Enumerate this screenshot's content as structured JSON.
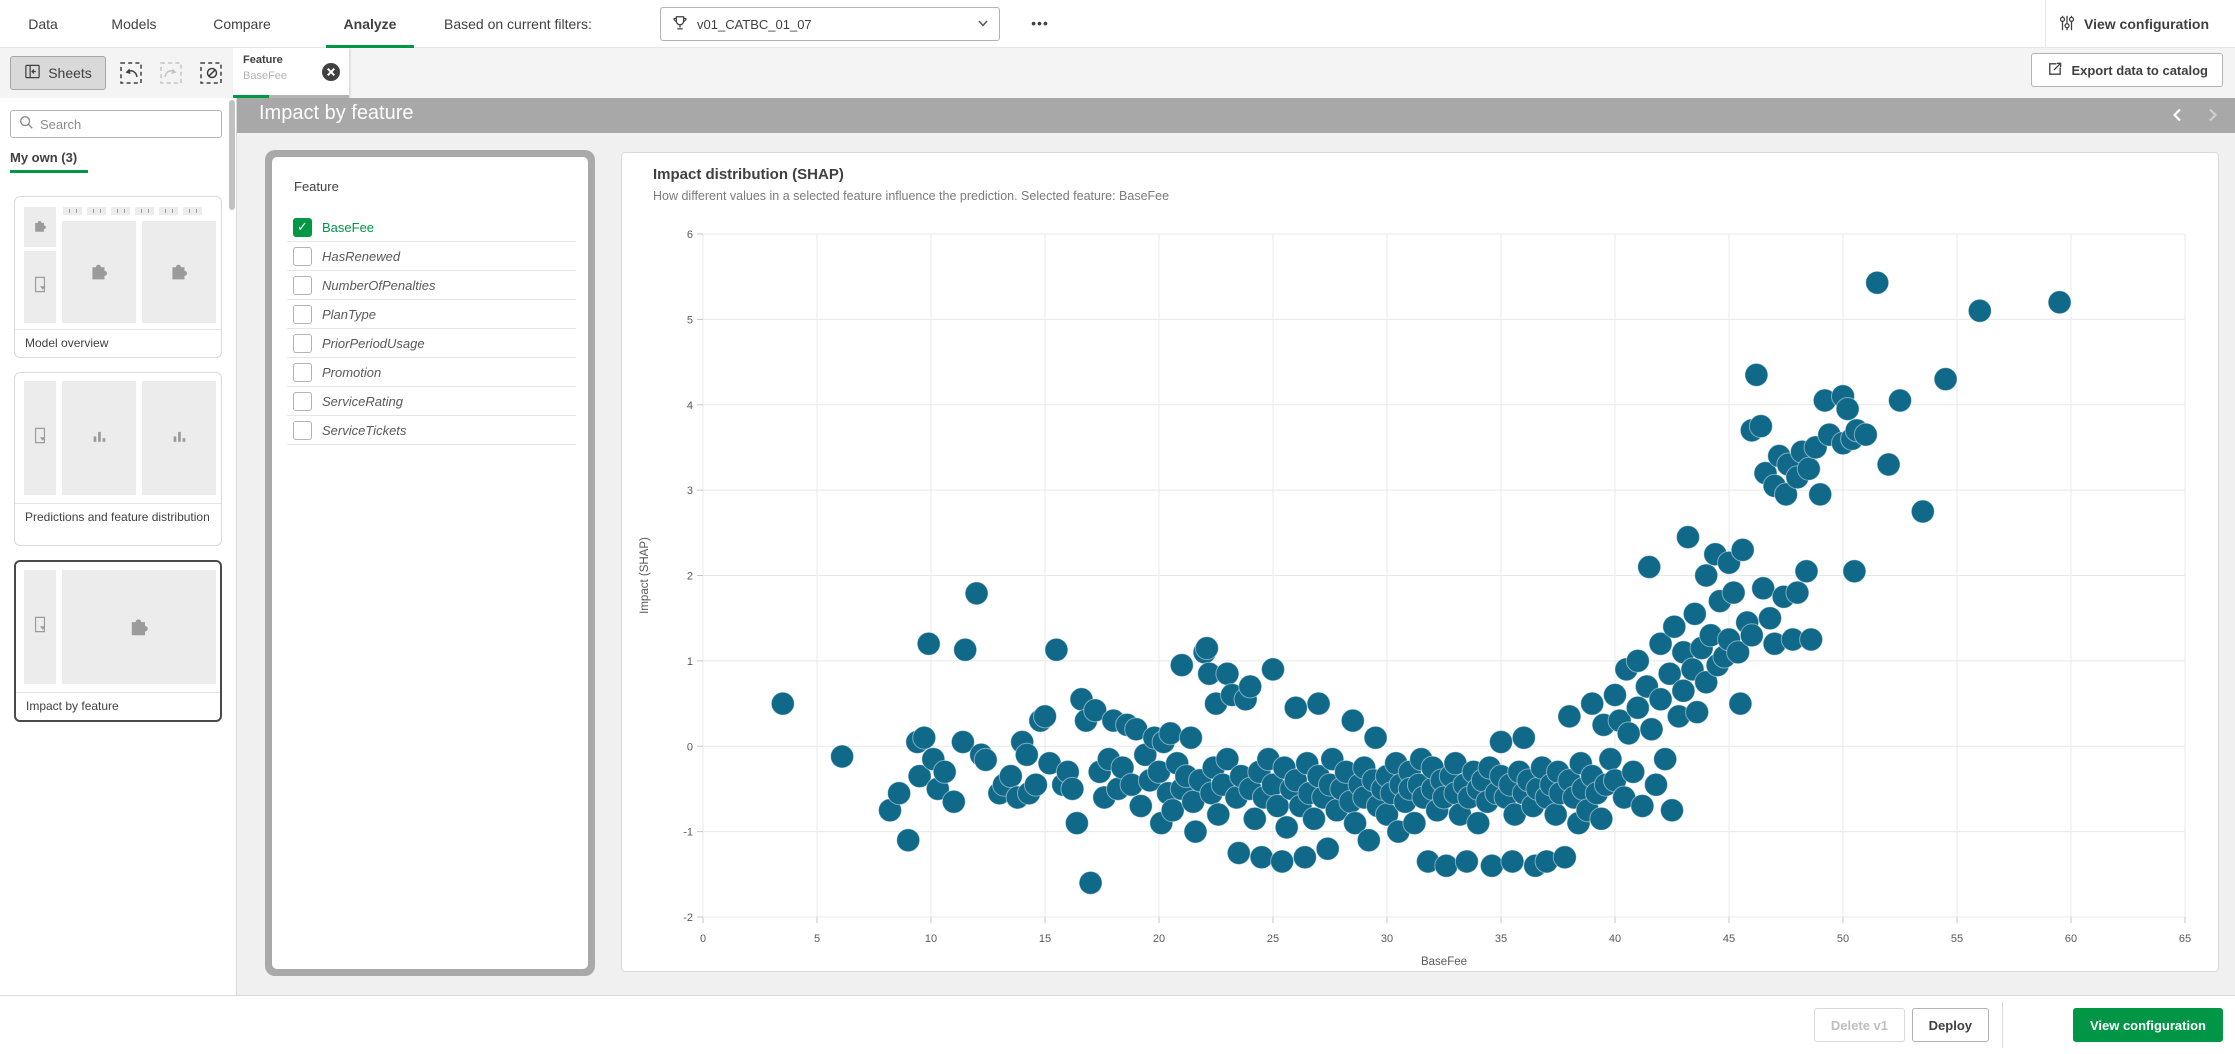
{
  "topbar": {
    "tabs": [
      {
        "label": "Data"
      },
      {
        "label": "Models"
      },
      {
        "label": "Compare"
      },
      {
        "label": "Analyze"
      }
    ],
    "active_tab": "Analyze",
    "filter_label": "Based on current filters:",
    "filter_value": "v01_CATBC_01_07",
    "more_glyph": "•••",
    "view_configuration_label": "View configuration"
  },
  "toolbar": {
    "sheets_label": "Sheets",
    "selection_chip": {
      "title": "Feature",
      "value": "BaseFee"
    },
    "export_label": "Export data to catalog"
  },
  "title_bar": {
    "title": "Impact by feature"
  },
  "sidebar": {
    "search_placeholder": "Search",
    "section_label": "My own (3)",
    "sheets": [
      {
        "label": "Model overview"
      },
      {
        "label": "Predictions and feature distribution"
      },
      {
        "label": "Impact by feature",
        "selected": true
      }
    ]
  },
  "feature_panel": {
    "title": "Feature",
    "items": [
      {
        "label": "BaseFee",
        "checked": true
      },
      {
        "label": "HasRenewed",
        "checked": false
      },
      {
        "label": "NumberOfPenalties",
        "checked": false
      },
      {
        "label": "PlanType",
        "checked": false
      },
      {
        "label": "PriorPeriodUsage",
        "checked": false
      },
      {
        "label": "Promotion",
        "checked": false
      },
      {
        "label": "ServiceRating",
        "checked": false
      },
      {
        "label": "ServiceTickets",
        "checked": false
      }
    ]
  },
  "footer": {
    "delete_label": "Delete v1",
    "deploy_label": "Deploy",
    "view_configuration_label": "View configuration"
  },
  "colors": {
    "accent_green": "#009845",
    "dot_fill": "#11698a",
    "title_bar_gray": "#a8a8a8",
    "grid_line": "#e8e8e8",
    "tick_text": "#595959"
  },
  "chart_data": {
    "type": "scatter",
    "title": "Impact distribution (SHAP)",
    "subtitle": "How different values in a selected feature influence the prediction. Selected feature: BaseFee",
    "xlabel": "BaseFee",
    "ylabel": "Impact (SHAP)",
    "xlim": [
      0,
      65
    ],
    "ylim": [
      -2,
      6
    ],
    "x_ticks": [
      0,
      5,
      10,
      15,
      20,
      25,
      30,
      35,
      40,
      45,
      50,
      55,
      60,
      65
    ],
    "y_ticks": [
      -2,
      -1,
      0,
      1,
      2,
      3,
      4,
      5,
      6
    ],
    "grid": true,
    "legend": "none",
    "points": [
      [
        3.5,
        0.5
      ],
      [
        6.1,
        -0.12
      ],
      [
        8.2,
        -0.75
      ],
      [
        8.6,
        -0.55
      ],
      [
        9,
        -1.1
      ],
      [
        9.4,
        0.05
      ],
      [
        9.5,
        -0.35
      ],
      [
        9.7,
        0.1
      ],
      [
        9.9,
        1.2
      ],
      [
        10.1,
        -0.15
      ],
      [
        10.3,
        -0.5
      ],
      [
        10.6,
        -0.3
      ],
      [
        11,
        -0.65
      ],
      [
        11.4,
        0.05
      ],
      [
        11.5,
        1.13
      ],
      [
        12,
        1.79
      ],
      [
        12.2,
        -0.1
      ],
      [
        12.4,
        -0.16
      ],
      [
        13,
        -0.55
      ],
      [
        13.2,
        -0.45
      ],
      [
        13.5,
        -0.35
      ],
      [
        13.8,
        -0.6
      ],
      [
        14,
        0.05
      ],
      [
        14.2,
        -0.1
      ],
      [
        14.3,
        -0.55
      ],
      [
        14.6,
        -0.45
      ],
      [
        14.8,
        0.3
      ],
      [
        15,
        0.35
      ],
      [
        15.2,
        -0.2
      ],
      [
        15.5,
        1.13
      ],
      [
        15.8,
        -0.45
      ],
      [
        16,
        -0.3
      ],
      [
        16.2,
        -0.5
      ],
      [
        16.4,
        -0.9
      ],
      [
        16.6,
        0.55
      ],
      [
        16.8,
        0.3
      ],
      [
        17,
        -1.6
      ],
      [
        17.2,
        0.42
      ],
      [
        17.4,
        -0.3
      ],
      [
        17.6,
        -0.6
      ],
      [
        17.8,
        -0.15
      ],
      [
        18,
        0.3
      ],
      [
        18.2,
        -0.5
      ],
      [
        18.4,
        -0.25
      ],
      [
        18.6,
        0.25
      ],
      [
        18.8,
        -0.45
      ],
      [
        19,
        0.2
      ],
      [
        19.2,
        -0.7
      ],
      [
        19.4,
        -0.1
      ],
      [
        19.6,
        -0.4
      ],
      [
        19.8,
        0.1
      ],
      [
        20,
        -0.3
      ],
      [
        20.1,
        -0.9
      ],
      [
        20.2,
        0.05
      ],
      [
        20.4,
        -0.55
      ],
      [
        20.5,
        0.15
      ],
      [
        20.6,
        -0.75
      ],
      [
        20.8,
        -0.2
      ],
      [
        21,
        0.95
      ],
      [
        21,
        -0.5
      ],
      [
        21.2,
        -0.35
      ],
      [
        21.4,
        0.1
      ],
      [
        21.5,
        -0.65
      ],
      [
        21.6,
        -1
      ],
      [
        21.8,
        -0.4
      ],
      [
        22,
        1.1
      ],
      [
        22.1,
        1.15
      ],
      [
        22.2,
        0.85
      ],
      [
        22.3,
        -0.55
      ],
      [
        22.4,
        -0.25
      ],
      [
        22.5,
        0.5
      ],
      [
        22.6,
        -0.8
      ],
      [
        22.8,
        -0.45
      ],
      [
        23,
        0.85
      ],
      [
        23,
        -0.15
      ],
      [
        23.2,
        0.6
      ],
      [
        23.4,
        -0.6
      ],
      [
        23.5,
        -1.25
      ],
      [
        23.6,
        -0.35
      ],
      [
        23.8,
        0.55
      ],
      [
        24,
        -0.5
      ],
      [
        24,
        0.7
      ],
      [
        24.2,
        -0.85
      ],
      [
        24.4,
        -0.3
      ],
      [
        24.5,
        -1.3
      ],
      [
        24.6,
        -0.6
      ],
      [
        24.8,
        -0.15
      ],
      [
        25,
        0.9
      ],
      [
        25,
        -0.45
      ],
      [
        25.2,
        -0.7
      ],
      [
        25.4,
        -1.35
      ],
      [
        25.5,
        -0.25
      ],
      [
        25.6,
        -0.95
      ],
      [
        25.8,
        -0.5
      ],
      [
        26,
        -0.4
      ],
      [
        26,
        0.45
      ],
      [
        26.2,
        -0.7
      ],
      [
        26.4,
        -1.3
      ],
      [
        26.5,
        -0.2
      ],
      [
        26.6,
        -0.55
      ],
      [
        26.8,
        -0.85
      ],
      [
        27,
        -0.35
      ],
      [
        27,
        0.5
      ],
      [
        27.2,
        -0.6
      ],
      [
        27.4,
        -1.2
      ],
      [
        27.5,
        -0.45
      ],
      [
        27.6,
        -0.15
      ],
      [
        27.8,
        -0.75
      ],
      [
        28,
        -0.5
      ],
      [
        28.2,
        -0.3
      ],
      [
        28.4,
        -0.65
      ],
      [
        28.5,
        0.3
      ],
      [
        28.6,
        -0.9
      ],
      [
        28.8,
        -0.45
      ],
      [
        29,
        -0.25
      ],
      [
        29,
        -0.6
      ],
      [
        29.2,
        -1.1
      ],
      [
        29.4,
        -0.4
      ],
      [
        29.5,
        0.1
      ],
      [
        29.6,
        -0.7
      ],
      [
        29.8,
        -0.5
      ],
      [
        30,
        -0.35
      ],
      [
        30,
        -0.8
      ],
      [
        30.2,
        -0.55
      ],
      [
        30.4,
        -0.2
      ],
      [
        30.5,
        -1
      ],
      [
        30.6,
        -0.45
      ],
      [
        30.8,
        -0.65
      ],
      [
        31,
        -0.3
      ],
      [
        31,
        -0.5
      ],
      [
        31.2,
        -0.9
      ],
      [
        31.4,
        -0.45
      ],
      [
        31.5,
        -0.15
      ],
      [
        31.6,
        -0.6
      ],
      [
        31.8,
        -1.35
      ],
      [
        32,
        -0.5
      ],
      [
        32,
        -0.25
      ],
      [
        32.2,
        -0.75
      ],
      [
        32.4,
        -0.4
      ],
      [
        32.5,
        -0.6
      ],
      [
        32.6,
        -1.4
      ],
      [
        32.8,
        -0.35
      ],
      [
        33,
        -0.55
      ],
      [
        33,
        -0.2
      ],
      [
        33.2,
        -0.8
      ],
      [
        33.4,
        -0.45
      ],
      [
        33.5,
        -1.35
      ],
      [
        33.6,
        -0.6
      ],
      [
        33.8,
        -0.3
      ],
      [
        34,
        -0.5
      ],
      [
        34,
        -0.9
      ],
      [
        34.2,
        -0.4
      ],
      [
        34.4,
        -0.65
      ],
      [
        34.5,
        -0.25
      ],
      [
        34.6,
        -1.4
      ],
      [
        34.8,
        -0.55
      ],
      [
        35,
        -0.35
      ],
      [
        35,
        0.05
      ],
      [
        35.2,
        -0.6
      ],
      [
        35.4,
        -0.45
      ],
      [
        35.5,
        -1.35
      ],
      [
        35.6,
        -0.8
      ],
      [
        35.8,
        -0.3
      ],
      [
        36,
        -0.55
      ],
      [
        36,
        0.1
      ],
      [
        36.2,
        -0.4
      ],
      [
        36.4,
        -0.7
      ],
      [
        36.5,
        -1.4
      ],
      [
        36.6,
        -0.5
      ],
      [
        36.8,
        -0.25
      ],
      [
        37,
        -0.6
      ],
      [
        37,
        -1.35
      ],
      [
        37.2,
        -0.45
      ],
      [
        37.4,
        -0.8
      ],
      [
        37.5,
        -0.3
      ],
      [
        37.6,
        -0.55
      ],
      [
        37.8,
        -1.3
      ],
      [
        38,
        -0.4
      ],
      [
        38,
        0.35
      ],
      [
        38.2,
        -0.6
      ],
      [
        38.4,
        -0.9
      ],
      [
        38.5,
        -0.2
      ],
      [
        38.6,
        -0.5
      ],
      [
        38.8,
        -0.75
      ],
      [
        39,
        -0.35
      ],
      [
        39,
        0.5
      ],
      [
        39.2,
        -0.55
      ],
      [
        39.4,
        -0.85
      ],
      [
        39.5,
        0.25
      ],
      [
        39.6,
        -0.45
      ],
      [
        39.8,
        -0.15
      ],
      [
        40,
        0.6
      ],
      [
        40,
        -0.4
      ],
      [
        40.2,
        0.3
      ],
      [
        40.4,
        -0.6
      ],
      [
        40.5,
        0.9
      ],
      [
        40.6,
        0.15
      ],
      [
        40.8,
        -0.3
      ],
      [
        41,
        1
      ],
      [
        41,
        0.45
      ],
      [
        41.2,
        -0.7
      ],
      [
        41.4,
        0.7
      ],
      [
        41.5,
        2.1
      ],
      [
        41.6,
        0.2
      ],
      [
        41.8,
        -0.45
      ],
      [
        42,
        1.2
      ],
      [
        42,
        0.55
      ],
      [
        42.2,
        -0.15
      ],
      [
        42.4,
        0.85
      ],
      [
        42.5,
        -0.75
      ],
      [
        42.6,
        1.4
      ],
      [
        42.8,
        0.35
      ],
      [
        43,
        1.1
      ],
      [
        43,
        0.65
      ],
      [
        43.2,
        2.45
      ],
      [
        43.4,
        0.9
      ],
      [
        43.5,
        1.55
      ],
      [
        43.6,
        0.4
      ],
      [
        43.8,
        1.15
      ],
      [
        44,
        2
      ],
      [
        44,
        0.75
      ],
      [
        44.2,
        1.3
      ],
      [
        44.4,
        2.25
      ],
      [
        44.5,
        0.95
      ],
      [
        44.6,
        1.7
      ],
      [
        44.8,
        1.05
      ],
      [
        45,
        2.15
      ],
      [
        45,
        1.25
      ],
      [
        45.2,
        1.8
      ],
      [
        45.4,
        1.1
      ],
      [
        45.5,
        0.5
      ],
      [
        45.6,
        2.3
      ],
      [
        45.8,
        1.45
      ],
      [
        46,
        3.7
      ],
      [
        46,
        1.3
      ],
      [
        46.2,
        4.35
      ],
      [
        46.4,
        3.75
      ],
      [
        46.5,
        1.85
      ],
      [
        46.6,
        3.2
      ],
      [
        46.8,
        1.5
      ],
      [
        47,
        3.05
      ],
      [
        47,
        1.2
      ],
      [
        47.2,
        3.4
      ],
      [
        47.4,
        1.75
      ],
      [
        47.5,
        2.95
      ],
      [
        47.6,
        3.3
      ],
      [
        47.8,
        1.25
      ],
      [
        48,
        3.15
      ],
      [
        48,
        1.8
      ],
      [
        48.2,
        3.45
      ],
      [
        48.4,
        2.05
      ],
      [
        48.5,
        3.25
      ],
      [
        48.6,
        1.25
      ],
      [
        48.8,
        3.5
      ],
      [
        49,
        2.95
      ],
      [
        49.2,
        4.05
      ],
      [
        49.4,
        3.65
      ],
      [
        50,
        4.1
      ],
      [
        50,
        3.55
      ],
      [
        50.2,
        3.95
      ],
      [
        50.4,
        3.6
      ],
      [
        50.5,
        2.05
      ],
      [
        50.6,
        3.7
      ],
      [
        51,
        3.65
      ],
      [
        51.5,
        5.43
      ],
      [
        52,
        3.3
      ],
      [
        52.5,
        4.05
      ],
      [
        53.5,
        2.75
      ],
      [
        54.5,
        4.3
      ],
      [
        56,
        5.1
      ],
      [
        59.5,
        5.2
      ]
    ]
  }
}
